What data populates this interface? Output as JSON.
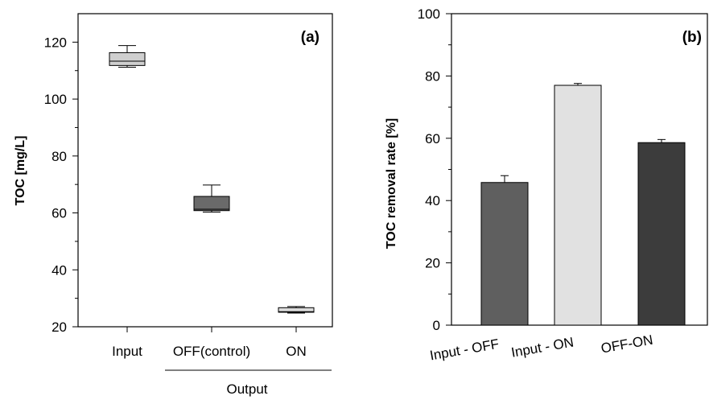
{
  "chart_data": [
    {
      "type": "box",
      "panel_label": "(a)",
      "ylabel": "TOC [mg/L]",
      "ylim": [
        20,
        130
      ],
      "yticks": [
        20,
        40,
        60,
        80,
        100,
        120
      ],
      "group_label": "Output",
      "categories": [
        "Input",
        "OFF(control)",
        "ON"
      ],
      "colors": [
        "#cfcfcf",
        "#6a6a6a",
        "#dcdcdc"
      ],
      "boxes": [
        {
          "category": "Input",
          "whisker_low": 111.2,
          "q1": 111.8,
          "median": 113.3,
          "q3": 116.3,
          "whisker_high": 118.8
        },
        {
          "category": "OFF(control)",
          "whisker_low": 60.3,
          "q1": 60.8,
          "median": 61.3,
          "q3": 65.8,
          "whisker_high": 69.8
        },
        {
          "category": "ON",
          "whisker_low": 24.8,
          "q1": 25.1,
          "median": 25.3,
          "q3": 26.7,
          "whisker_high": 27.1
        }
      ]
    },
    {
      "type": "bar",
      "panel_label": "(b)",
      "ylabel": "TOC removal rate [%]",
      "ylim": [
        0,
        100
      ],
      "yticks": [
        0,
        20,
        40,
        60,
        80,
        100
      ],
      "categories": [
        "Input - OFF",
        "Input - ON",
        "OFF-ON"
      ],
      "values": [
        45.8,
        77.0,
        58.6
      ],
      "errors": [
        2.2,
        0.6,
        1.0
      ],
      "colors": [
        "#5f5f5f",
        "#e1e1e1",
        "#3c3c3c"
      ]
    }
  ]
}
